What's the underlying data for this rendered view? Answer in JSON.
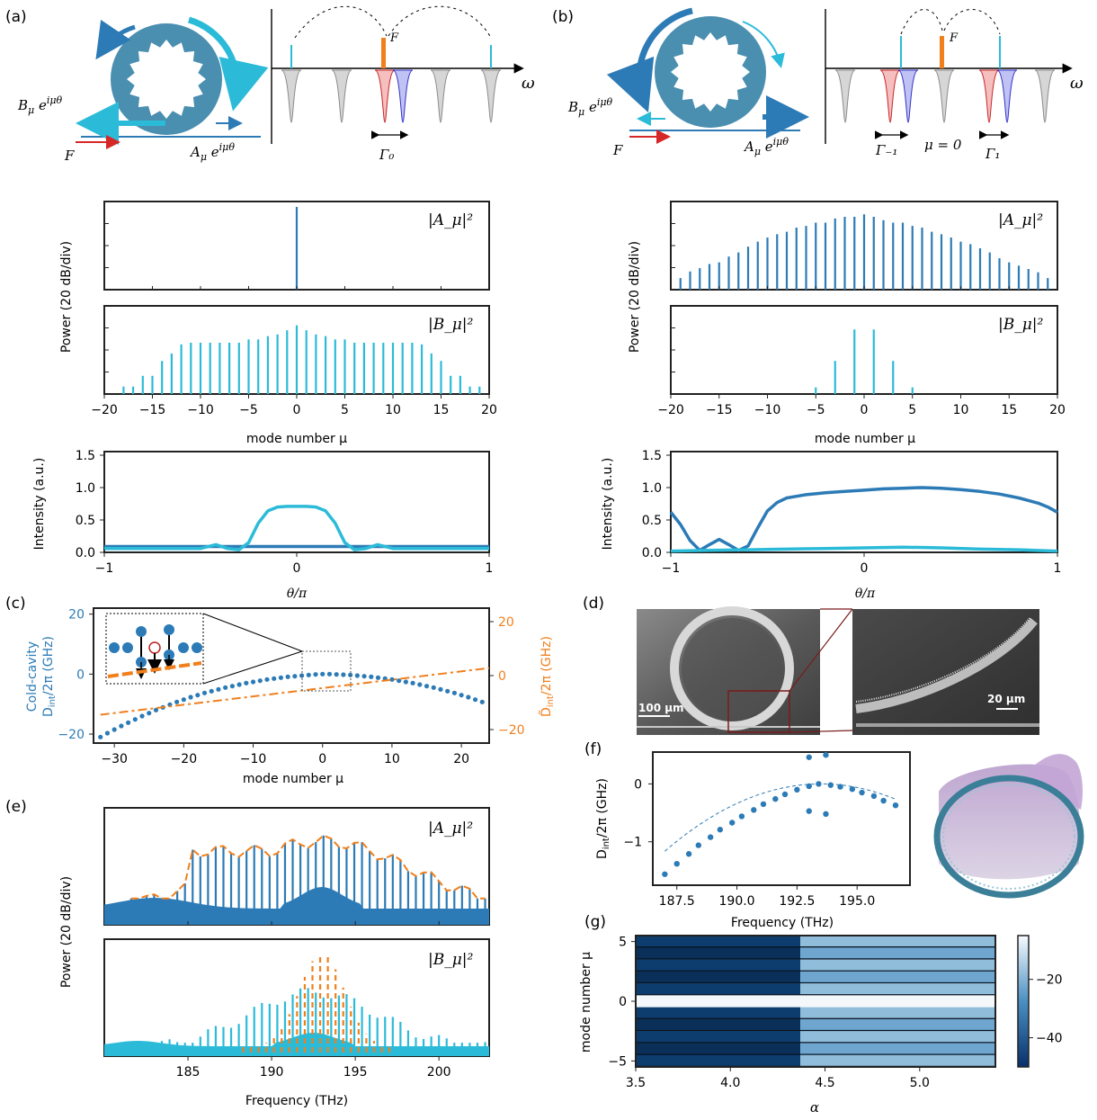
{
  "panel_labels": {
    "a": "(a)",
    "b": "(b)",
    "c": "(c)",
    "d": "(d)",
    "e": "(e)",
    "f": "(f)",
    "g": "(g)"
  },
  "schematic": {
    "omega": "ω",
    "F": "F",
    "A_label": "A_μ e^{iμθ}",
    "B_label": "B_μ e^{iμθ}",
    "gamma0": "Γ₀",
    "gamma_m1": "Γ₋₁",
    "mu0": "μ = 0",
    "gamma1": "Γ₁"
  },
  "common": {
    "power_ylabel": "Power (20 dB/div)",
    "mode_xlabel": "mode number μ",
    "intensity_ylabel": "Intensity (a.u.)",
    "theta_xlabel": "θ/π",
    "A_tag": "|A_μ|²",
    "B_tag": "|B_μ|²"
  },
  "panel_d": {
    "scale1": "100 μm",
    "scale2": "20 μm"
  },
  "chart_data": [
    {
      "id": "a_A_spectrum",
      "type": "bar",
      "xlabel": "",
      "ylabel": "Power (20 dB/div)",
      "x": [
        0
      ],
      "values": [
        1.0
      ],
      "xlim": [
        -20,
        20
      ],
      "color": "#2c7bb6"
    },
    {
      "id": "a_B_spectrum",
      "type": "bar",
      "xlabel": "mode number μ",
      "ylabel": "Power (20 dB/div)",
      "xlim": [
        -20,
        20
      ],
      "xticks": [
        -20,
        -15,
        -10,
        -5,
        0,
        5,
        10,
        15,
        20
      ],
      "color": "#2bbbd8",
      "x": [
        -19,
        -18,
        -17,
        -16,
        -15,
        -14,
        -13,
        -12,
        -11,
        -10,
        -9,
        -8,
        -7,
        -6,
        -5,
        -4,
        -3,
        -2,
        -1,
        0,
        1,
        2,
        3,
        4,
        5,
        6,
        7,
        8,
        9,
        10,
        11,
        12,
        13,
        14,
        15,
        16,
        17,
        18,
        19
      ],
      "values": [
        0.0,
        0.09,
        0.09,
        0.22,
        0.22,
        0.4,
        0.49,
        0.6,
        0.62,
        0.62,
        0.62,
        0.62,
        0.62,
        0.62,
        0.66,
        0.66,
        0.7,
        0.72,
        0.77,
        0.83,
        0.77,
        0.72,
        0.7,
        0.66,
        0.66,
        0.62,
        0.62,
        0.62,
        0.62,
        0.62,
        0.62,
        0.62,
        0.6,
        0.49,
        0.4,
        0.22,
        0.22,
        0.09,
        0.09
      ]
    },
    {
      "id": "a_intensity",
      "type": "line",
      "xlabel": "θ/π",
      "ylabel": "Intensity (a.u.)",
      "xlim": [
        -1,
        1
      ],
      "ylim": [
        0,
        1.5
      ],
      "xticks": [
        -1,
        0,
        1
      ],
      "yticks": [
        0.0,
        0.5,
        1.0,
        1.5
      ],
      "series": [
        {
          "color": "#2c7bb6",
          "x": [
            -1,
            1
          ],
          "y": [
            0.09,
            0.09
          ]
        },
        {
          "color": "#2bbbd8",
          "x": [
            -1,
            -0.5,
            -0.42,
            -0.36,
            -0.3,
            -0.25,
            -0.2,
            -0.15,
            -0.1,
            -0.05,
            0,
            0.05,
            0.1,
            0.15,
            0.2,
            0.25,
            0.3,
            0.36,
            0.42,
            0.5,
            1
          ],
          "y": [
            0.06,
            0.06,
            0.12,
            0.06,
            0.04,
            0.15,
            0.45,
            0.64,
            0.7,
            0.71,
            0.71,
            0.71,
            0.7,
            0.64,
            0.45,
            0.15,
            0.04,
            0.06,
            0.12,
            0.06,
            0.06
          ]
        }
      ]
    },
    {
      "id": "b_A_spectrum",
      "type": "bar",
      "xlabel": "",
      "ylabel": "Power (20 dB/div)",
      "xlim": [
        -20,
        20
      ],
      "color": "#2c7bb6",
      "x": [
        -19,
        -18,
        -17,
        -16,
        -15,
        -14,
        -13,
        -12,
        -11,
        -10,
        -9,
        -8,
        -7,
        -6,
        -5,
        -4,
        -3,
        -2,
        -1,
        0,
        1,
        2,
        3,
        4,
        5,
        6,
        7,
        8,
        9,
        10,
        11,
        12,
        13,
        14,
        15,
        16,
        17,
        18,
        19
      ],
      "values": [
        0.14,
        0.22,
        0.26,
        0.31,
        0.33,
        0.4,
        0.45,
        0.52,
        0.58,
        0.63,
        0.67,
        0.7,
        0.75,
        0.77,
        0.81,
        0.81,
        0.86,
        0.88,
        0.88,
        0.91,
        0.88,
        0.84,
        0.81,
        0.81,
        0.77,
        0.75,
        0.7,
        0.67,
        0.63,
        0.58,
        0.55,
        0.5,
        0.45,
        0.38,
        0.33,
        0.29,
        0.25,
        0.21,
        0.14
      ]
    },
    {
      "id": "b_B_spectrum",
      "type": "bar",
      "xlabel": "mode number μ",
      "ylabel": "Power (20 dB/div)",
      "xlim": [
        -20,
        20
      ],
      "xticks": [
        -20,
        -15,
        -10,
        -5,
        0,
        5,
        10,
        15,
        20
      ],
      "color": "#2bbbd8",
      "x": [
        -5,
        -3,
        -1,
        1,
        3,
        5
      ],
      "values": [
        0.08,
        0.4,
        0.78,
        0.78,
        0.4,
        0.08
      ]
    },
    {
      "id": "b_intensity",
      "type": "line",
      "xlabel": "θ/π",
      "ylabel": "Intensity (a.u.)",
      "xlim": [
        -1,
        1
      ],
      "ylim": [
        0,
        1.5
      ],
      "xticks": [
        -1,
        0,
        1
      ],
      "yticks": [
        0.0,
        0.5,
        1.0,
        1.5
      ],
      "series": [
        {
          "color": "#2c7bb6",
          "x": [
            -1,
            -0.95,
            -0.9,
            -0.85,
            -0.8,
            -0.75,
            -0.7,
            -0.65,
            -0.6,
            -0.55,
            -0.5,
            -0.45,
            -0.4,
            -0.3,
            -0.2,
            -0.1,
            0,
            0.1,
            0.2,
            0.3,
            0.4,
            0.5,
            0.6,
            0.7,
            0.8,
            0.9,
            0.95,
            1
          ],
          "y": [
            0.62,
            0.43,
            0.18,
            0.03,
            0.12,
            0.2,
            0.12,
            0.03,
            0.1,
            0.38,
            0.64,
            0.77,
            0.84,
            0.89,
            0.92,
            0.94,
            0.96,
            0.98,
            0.99,
            1.0,
            0.99,
            0.97,
            0.94,
            0.9,
            0.84,
            0.76,
            0.7,
            0.62
          ]
        },
        {
          "color": "#2bbbd8",
          "x": [
            -1,
            -0.8,
            -0.6,
            -0.4,
            -0.2,
            0,
            0.2,
            0.4,
            0.6,
            0.8,
            1
          ],
          "y": [
            0.02,
            0.03,
            0.04,
            0.05,
            0.06,
            0.07,
            0.08,
            0.07,
            0.05,
            0.04,
            0.02
          ]
        }
      ]
    },
    {
      "id": "c_dispersion",
      "type": "scatter",
      "xlabel": "mode number μ",
      "ylabel": "Cold-cavity D_int/2π (GHz)",
      "ylabel_right": "D̃_int/2π (GHz)",
      "xlim": [
        -33,
        24
      ],
      "ylim": [
        -23,
        22
      ],
      "xticks": [
        -30,
        -20,
        -10,
        0,
        10,
        20
      ],
      "yticks": [
        -20,
        0,
        20
      ],
      "yticks_right": [
        -20,
        0,
        20
      ],
      "series": [
        {
          "color": "#2c7bb6",
          "x": [
            -32,
            -31,
            -30,
            -29,
            -28,
            -27,
            -26,
            -25,
            -24,
            -23,
            -22,
            -21,
            -20,
            -19,
            -18,
            -17,
            -16,
            -15,
            -14,
            -13,
            -12,
            -11,
            -10,
            -9,
            -8,
            -7,
            -6,
            -5,
            -4,
            -3,
            -2,
            -1,
            0,
            1,
            2,
            3,
            4,
            5,
            6,
            7,
            8,
            9,
            10,
            11,
            12,
            13,
            14,
            15,
            16,
            17,
            18,
            19,
            20,
            21,
            22,
            23
          ],
          "y": [
            -21,
            -19.7,
            -18.5,
            -17.3,
            -16.2,
            -15.1,
            -14.0,
            -13.0,
            -12.0,
            -11.1,
            -10.2,
            -9.3,
            -8.5,
            -7.7,
            -7.0,
            -6.3,
            -5.7,
            -5.1,
            -4.5,
            -4.0,
            -3.5,
            -3.0,
            -2.6,
            -2.2,
            -1.8,
            -1.5,
            -1.2,
            -0.9,
            -0.7,
            -0.5,
            -0.3,
            -0.1,
            0,
            0,
            -0.1,
            -0.2,
            -0.3,
            -0.5,
            -0.7,
            -0.9,
            -1.2,
            -1.5,
            -1.8,
            -2.2,
            -2.6,
            -3.0,
            -3.5,
            -4.0,
            -4.5,
            -5.1,
            -5.7,
            -6.3,
            -7.0,
            -7.7,
            -8.5,
            -9.3
          ]
        },
        {
          "color": "#f07f1c",
          "x": [
            -32,
            24
          ],
          "y": [
            -14.5,
            2.8
          ],
          "dash": true,
          "axis": "right"
        }
      ]
    },
    {
      "id": "e_A",
      "type": "line",
      "xlabel": "",
      "ylabel": "Power (20 dB/div)",
      "xlim": [
        180,
        203
      ]
    },
    {
      "id": "e_B",
      "type": "line",
      "xlabel": "Frequency (THz)",
      "ylabel": "Power (20 dB/div)",
      "xlim": [
        180,
        203
      ],
      "xticks": [
        185,
        190,
        195,
        200
      ]
    },
    {
      "id": "f_dispersion",
      "type": "scatter",
      "xlabel": "Frequency (THz)",
      "ylabel": "D_int/2π (GHz)",
      "xlim": [
        186.5,
        197.2
      ],
      "ylim": [
        -1.75,
        0.55
      ],
      "xticks": [
        187.5,
        190.0,
        192.5,
        195.0
      ],
      "yticks": [
        -1,
        0
      ],
      "series": [
        {
          "color": "#2c7bb6",
          "x": [
            187.0,
            187.5,
            188.0,
            188.4,
            188.9,
            189.3,
            189.8,
            190.2,
            190.7,
            191.1,
            191.6,
            192.0,
            192.5,
            193.0,
            193.4,
            193.9,
            194.3,
            194.8,
            195.2,
            195.7,
            196.1,
            196.6
          ],
          "y": [
            -1.56,
            -1.38,
            -1.21,
            -1.06,
            -0.92,
            -0.79,
            -0.67,
            -0.56,
            -0.45,
            -0.35,
            -0.26,
            -0.18,
            -0.1,
            -0.04,
            0.0,
            -0.02,
            -0.05,
            -0.09,
            -0.15,
            -0.21,
            -0.29,
            -0.37
          ]
        },
        {
          "color": "#2c7bb6",
          "x": [
            193.0,
            193.7,
            193.0,
            193.7
          ],
          "y": [
            0.46,
            0.5,
            -0.47,
            -0.52
          ]
        }
      ]
    },
    {
      "id": "g_heatmap",
      "type": "heatmap",
      "xlabel": "α",
      "ylabel": "mode number μ",
      "xlim": [
        3.5,
        5.4
      ],
      "ylim": [
        -5.5,
        5.5
      ],
      "xticks": [
        3.5,
        4.0,
        4.5,
        5.0
      ],
      "yticks": [
        -5,
        0,
        5
      ],
      "colorbar_ticks": [
        -20,
        -40
      ],
      "rows": [
        5,
        4,
        3,
        2,
        1,
        0,
        -1,
        -2,
        -3,
        -4,
        -5
      ],
      "threshold_alpha": 4.37
    }
  ]
}
